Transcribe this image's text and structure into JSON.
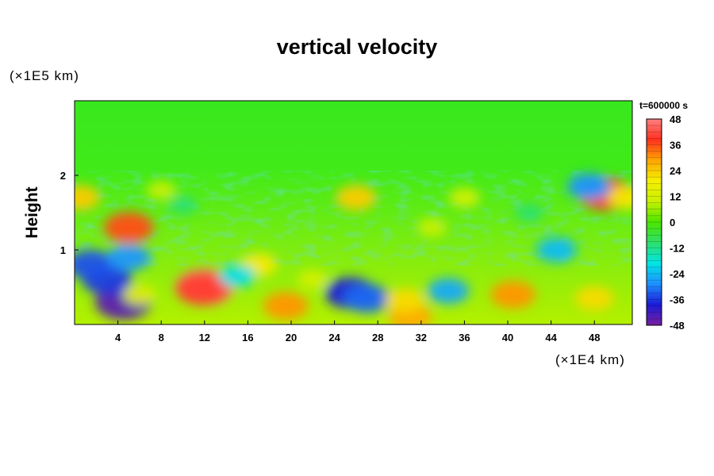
{
  "chart_data": {
    "type": "heatmap",
    "title": "vertical velocity",
    "ylabel": "Height",
    "y_unit": "(×1E5 km)",
    "x_unit": "(×1E4 km)",
    "time_label": "t=600000 s",
    "x_ticks": [
      "4",
      "8",
      "12",
      "16",
      "20",
      "24",
      "28",
      "32",
      "36",
      "40",
      "44",
      "48"
    ],
    "y_ticks": [
      "1",
      "2"
    ],
    "xlim": [
      0,
      51.5
    ],
    "ylim": [
      0,
      3
    ],
    "colorbar": {
      "ticks": [
        "48",
        "36",
        "24",
        "12",
        "0",
        "-12",
        "-24",
        "-36",
        "-48"
      ],
      "range": [
        -48,
        48
      ],
      "colors": [
        "#7a1f9e",
        "#1b1bd6",
        "#1e90ff",
        "#00e5e5",
        "#2ee06a",
        "#4ce600",
        "#c8f000",
        "#f5f000",
        "#ffa500",
        "#ff3020",
        "#ff8080"
      ]
    },
    "features": [
      {
        "x": 12.0,
        "y": 0.5,
        "value": 48
      },
      {
        "x": 11.8,
        "y": 0.48,
        "value": 40
      },
      {
        "x": 4.5,
        "y": 0.3,
        "value": -45
      },
      {
        "x": 3.0,
        "y": 0.6,
        "value": -36
      },
      {
        "x": 1.5,
        "y": 0.8,
        "value": -34
      },
      {
        "x": 5.0,
        "y": 0.9,
        "value": -28
      },
      {
        "x": 25.5,
        "y": 0.42,
        "value": -38
      },
      {
        "x": 27.0,
        "y": 0.35,
        "value": -32
      },
      {
        "x": 34.5,
        "y": 0.45,
        "value": -26
      },
      {
        "x": 40.5,
        "y": 0.4,
        "value": 30
      },
      {
        "x": 48.0,
        "y": 0.35,
        "value": 22
      },
      {
        "x": 19.5,
        "y": 0.25,
        "value": 30
      },
      {
        "x": 31.0,
        "y": 0.1,
        "value": 28
      },
      {
        "x": 30.5,
        "y": 0.32,
        "value": 22
      },
      {
        "x": 49.0,
        "y": 1.75,
        "value": 40
      },
      {
        "x": 47.5,
        "y": 1.85,
        "value": -28
      },
      {
        "x": 5.0,
        "y": 1.3,
        "value": 36
      },
      {
        "x": 0.5,
        "y": 1.7,
        "value": 24
      },
      {
        "x": 51.0,
        "y": 1.7,
        "value": 20
      },
      {
        "x": 26.0,
        "y": 1.7,
        "value": 24
      },
      {
        "x": 17.0,
        "y": 0.8,
        "value": 20
      },
      {
        "x": 22.0,
        "y": 0.6,
        "value": 12
      },
      {
        "x": 15.0,
        "y": 0.65,
        "value": -20
      },
      {
        "x": 44.5,
        "y": 1.0,
        "value": -24
      },
      {
        "x": 8.0,
        "y": 1.8,
        "value": 10
      },
      {
        "x": 10.0,
        "y": 1.6,
        "value": -10
      },
      {
        "x": 36.0,
        "y": 1.7,
        "value": 12
      },
      {
        "x": 42.0,
        "y": 1.5,
        "value": -10
      },
      {
        "x": 33.0,
        "y": 1.3,
        "value": 10
      },
      {
        "x": 6.0,
        "y": 0.4,
        "value": 14
      }
    ]
  }
}
